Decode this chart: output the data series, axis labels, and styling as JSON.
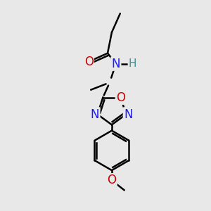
{
  "background_color": "#e8e8e8",
  "atom_colors": {
    "C": "#000000",
    "N": "#1a1aff",
    "O": "#cc0000",
    "H": "#4a9090"
  },
  "bond_color": "#000000",
  "bond_width": 1.8,
  "figsize": [
    3.0,
    3.0
  ],
  "dpi": 100,
  "xlim": [
    0,
    10
  ],
  "ylim": [
    0,
    10
  ]
}
